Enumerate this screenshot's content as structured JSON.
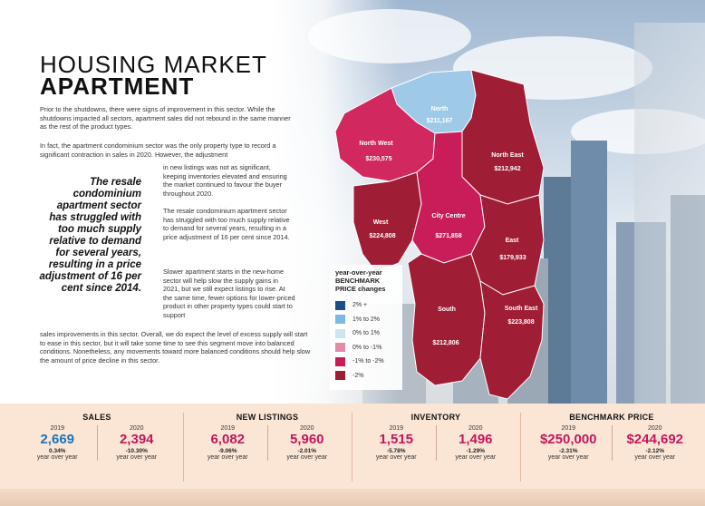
{
  "title": {
    "light": "HOUSING MARKET",
    "bold": "APARTMENT"
  },
  "paragraphs": {
    "p1": "Prior to the shutdowns, there were signs of improvement in this sector. While the shutdowns impacted all sectors, apartment sales did not rebound in the same manner as the rest of the product types.",
    "p2": "In fact, the apartment condominium sector was the only property type to record a significant contraction in sales in 2020. However, the adjustment",
    "p3": "in new listings was not as significant, keeping inventories elevated and ensuring the market continued to favour the buyer throughout 2020.",
    "p4": "The resale condominium apartment sector has struggled with too much supply relative to demand for several years, resulting in a price adjustment of 16 per cent since 2014.",
    "p5": "Slower apartment starts in the new-home sector will help slow the supply gains in 2021, but we still expect listings to rise. At the same time, fewer options for lower-priced product in other property types could start to support",
    "p6": "sales improvements in this sector. Overall, we do expect the level of excess supply will start to ease in this sector, but it will take some time to see this segment move into balanced conditions. Nonetheless, any movements toward more balanced conditions should help slow the amount of price decline in this sector."
  },
  "pullquote": "The resale condominium apartment sector has struggled with too much supply relative to demand for several years, resulting in a price adjustment of 16 per cent since 2014.",
  "map": {
    "regions": [
      {
        "name": "North",
        "price": "$211,167",
        "color": "#9ecae8"
      },
      {
        "name": "North West",
        "price": "$230,575",
        "color": "#d0285f"
      },
      {
        "name": "North East",
        "price": "$212,942",
        "color": "#a01d36"
      },
      {
        "name": "West",
        "price": "$224,808",
        "color": "#a01d36"
      },
      {
        "name": "City Centre",
        "price": "$271,858",
        "color": "#c81d58"
      },
      {
        "name": "East",
        "price": "$179,933",
        "color": "#a01d36"
      },
      {
        "name": "South",
        "price": "$212,806",
        "color": "#a01d36"
      },
      {
        "name": "South East",
        "price": "$223,808",
        "color": "#a01d36"
      }
    ]
  },
  "legend": {
    "title": "year-over-year BENCHMARK PRICE changes",
    "items": [
      {
        "label": "2% +",
        "color": "#1b4f86"
      },
      {
        "label": "1% to 2%",
        "color": "#7fb8e2"
      },
      {
        "label": "0% to 1%",
        "color": "#cfe4f3"
      },
      {
        "label": "0% to -1%",
        "color": "#e58aa7"
      },
      {
        "label": "-1% to -2%",
        "color": "#c81d58"
      },
      {
        "label": "-2%",
        "color": "#a01d36"
      }
    ]
  },
  "stats": [
    {
      "title": "SALES",
      "cols": [
        {
          "year": "2019",
          "value": "2,669",
          "pct": "0.34%",
          "label": "year over year",
          "color": "blue"
        },
        {
          "year": "2020",
          "value": "2,394",
          "pct": "-10.30%",
          "label": "year over year",
          "color": "red"
        }
      ]
    },
    {
      "title": "NEW LISTINGS",
      "cols": [
        {
          "year": "2019",
          "value": "6,082",
          "pct": "-9.06%",
          "label": "year over year",
          "color": "red"
        },
        {
          "year": "2020",
          "value": "5,960",
          "pct": "-2.01%",
          "label": "year over year",
          "color": "red"
        }
      ]
    },
    {
      "title": "INVENTORY",
      "cols": [
        {
          "year": "2019",
          "value": "1,515",
          "pct": "-5.78%",
          "label": "year over year",
          "color": "red"
        },
        {
          "year": "2020",
          "value": "1,496",
          "pct": "-1.29%",
          "label": "year over year",
          "color": "red"
        }
      ]
    },
    {
      "title": "BENCHMARK PRICE",
      "cols": [
        {
          "year": "2019",
          "value": "$250,000",
          "pct": "-2.31%",
          "label": "year over year",
          "color": "red"
        },
        {
          "year": "2020",
          "value": "$244,692",
          "pct": "-2.12%",
          "label": "year over year",
          "color": "red"
        }
      ]
    }
  ]
}
